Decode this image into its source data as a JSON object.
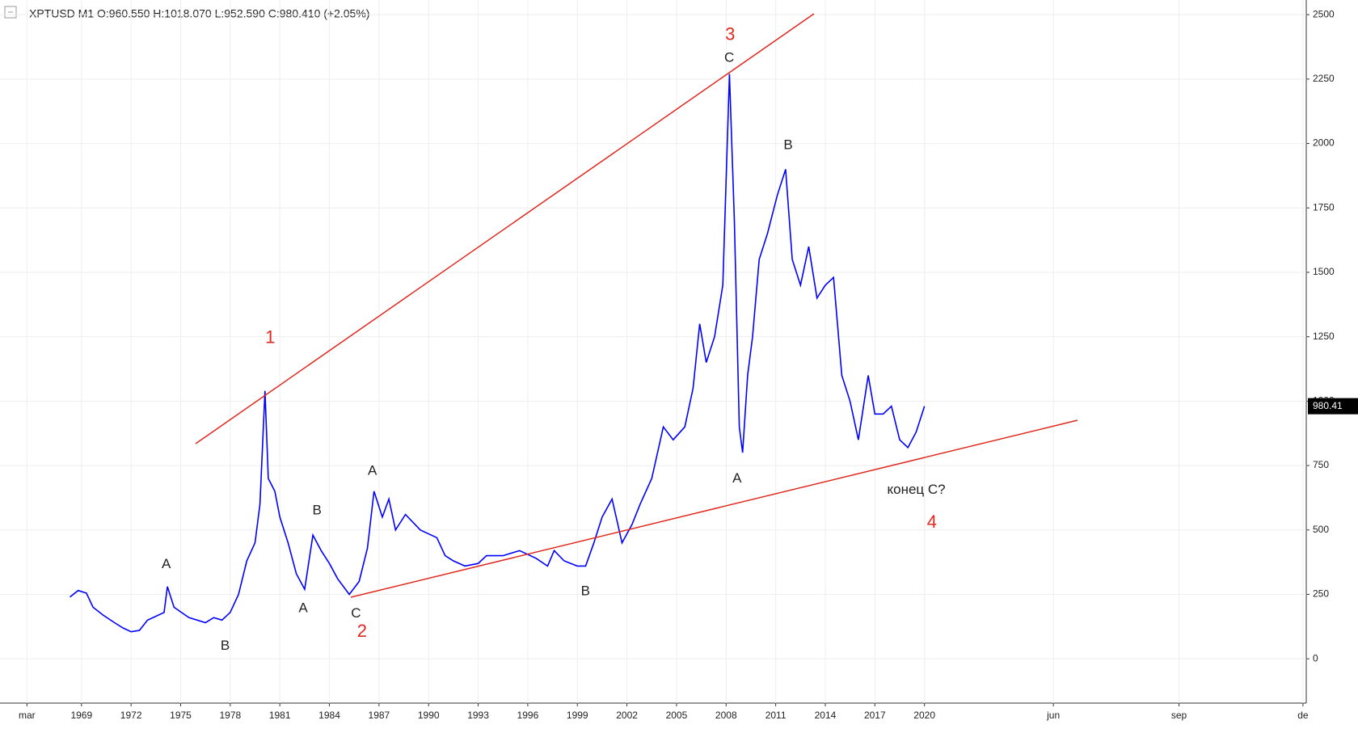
{
  "chart_data": {
    "type": "line",
    "title": "XPTUSD  M1  O:960.550  H:1018.070  L:952.590  C:980.410  (+2.05%)",
    "x": [
      1968.3,
      1968.8,
      1969.3,
      1969.7,
      1970.3,
      1971,
      1971.5,
      1972,
      1972.5,
      1973,
      1973.5,
      1974,
      1974.2,
      1974.6,
      1975.5,
      1976,
      1976.5,
      1977,
      1977.5,
      1978,
      1978.5,
      1979,
      1979.5,
      1979.8,
      1980.1,
      1980.3,
      1980.7,
      1981,
      1981.5,
      1982,
      1982.5,
      1983,
      1983.5,
      1984,
      1984.5,
      1985.2,
      1985.8,
      1986.3,
      1986.7,
      1987.2,
      1987.6,
      1988,
      1988.6,
      1989.5,
      1990.5,
      1991,
      1991.5,
      1992.2,
      1993,
      1993.5,
      1994.5,
      1995.5,
      1996.5,
      1997.2,
      1997.6,
      1998.2,
      1999,
      1999.5,
      2000,
      2000.5,
      2001.1,
      2001.7,
      2002.3,
      2002.8,
      2003.5,
      2004.2,
      2004.8,
      2005.5,
      2006,
      2006.4,
      2006.8,
      2007.3,
      2007.8,
      2008.2,
      2008.5,
      2008.8,
      2009,
      2009.3,
      2009.6,
      2010,
      2010.5,
      2011.1,
      2011.6,
      2012,
      2012.5,
      2013,
      2013.5,
      2014,
      2014.5,
      2015,
      2015.5,
      2016,
      2016.6,
      2017,
      2017.5,
      2018,
      2018.5,
      2019,
      2019.5,
      2020
    ],
    "values": [
      240,
      265,
      255,
      200,
      170,
      140,
      120,
      105,
      110,
      150,
      165,
      180,
      280,
      200,
      160,
      150,
      140,
      160,
      150,
      180,
      250,
      380,
      450,
      600,
      1040,
      700,
      650,
      550,
      450,
      330,
      270,
      480,
      420,
      370,
      310,
      250,
      300,
      430,
      650,
      550,
      620,
      500,
      560,
      500,
      470,
      400,
      380,
      360,
      370,
      400,
      400,
      420,
      390,
      360,
      420,
      380,
      360,
      360,
      450,
      550,
      620,
      450,
      520,
      600,
      700,
      900,
      850,
      900,
      1050,
      1300,
      1150,
      1250,
      1450,
      2270,
      1700,
      900,
      800,
      1100,
      1250,
      1550,
      1650,
      1800,
      1900,
      1550,
      1450,
      1600,
      1400,
      1450,
      1480,
      1100,
      1000,
      850,
      1100,
      950,
      950,
      980,
      850,
      820,
      880,
      980.41
    ],
    "color": "#0000ff",
    "xlim": [
      1964.07,
      2043.1
    ],
    "xticks": [
      {
        "value": 1965.7,
        "label": "mar"
      },
      1969,
      1972,
      1975,
      1978,
      1981,
      1984,
      1987,
      1990,
      1993,
      1996,
      1999,
      2002,
      2005,
      2008,
      2011,
      2014,
      2017,
      2020,
      {
        "value": 2027.8,
        "label": "jun"
      },
      {
        "value": 2035.4,
        "label": "sep"
      },
      {
        "value": 2042.9,
        "label": "de"
      }
    ],
    "ylim": [
      -172,
      2557
    ],
    "yticks": [
      0,
      250,
      500,
      750,
      1000,
      1250,
      1500,
      1750,
      2000,
      2250,
      2500
    ],
    "grid": true,
    "annotations": [
      "1",
      "2",
      "3",
      "4",
      "A",
      "B",
      "A",
      "B",
      "C",
      "A",
      "B",
      "C",
      "A",
      "B",
      "конец C?"
    ]
  }
}
